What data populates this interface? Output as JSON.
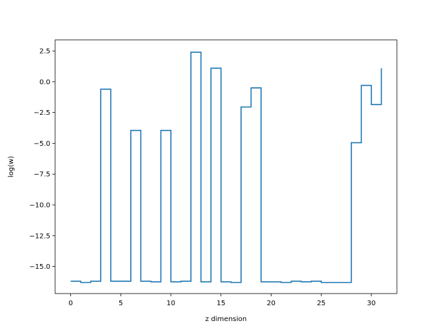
{
  "chart_data": {
    "type": "line",
    "drawstyle": "steps-post",
    "title": "",
    "xlabel": "z dimension",
    "ylabel": "log(w)",
    "xlim": [
      -1.55,
      32.55
    ],
    "ylim": [
      -17.2,
      3.4
    ],
    "grid": false,
    "legend": "none",
    "line_color": "#1f77b4",
    "xticks": [
      0,
      5,
      10,
      15,
      20,
      25,
      30
    ],
    "xtick_labels": [
      "0",
      "5",
      "10",
      "15",
      "20",
      "25",
      "30"
    ],
    "yticks": [
      2.5,
      0.0,
      -2.5,
      -5.0,
      -7.5,
      -10.0,
      -12.5,
      -15.0
    ],
    "ytick_labels": [
      "2.5",
      "0.0",
      "−2.5",
      "−5.0",
      "−7.5",
      "−10.0",
      "−12.5",
      "−15.0"
    ],
    "series": [
      {
        "x": [
          0,
          1,
          2,
          3,
          4,
          5,
          6,
          7,
          8,
          9,
          10,
          11,
          12,
          13,
          14,
          15,
          16,
          17,
          18,
          19,
          20,
          21,
          22,
          23,
          24,
          25,
          26,
          27,
          28,
          29,
          30,
          31
        ],
        "y": [
          -16.2,
          -16.3,
          -16.2,
          -0.6,
          -16.2,
          -16.2,
          -3.95,
          -16.2,
          -16.25,
          -3.95,
          -16.25,
          -16.2,
          2.4,
          -16.25,
          1.1,
          -16.25,
          -16.3,
          -2.05,
          -0.5,
          -16.25,
          -16.25,
          -16.3,
          -16.2,
          -16.25,
          -16.2,
          -16.3,
          -16.3,
          -16.3,
          -4.95,
          -0.3,
          -1.85,
          1.1
        ]
      }
    ]
  }
}
